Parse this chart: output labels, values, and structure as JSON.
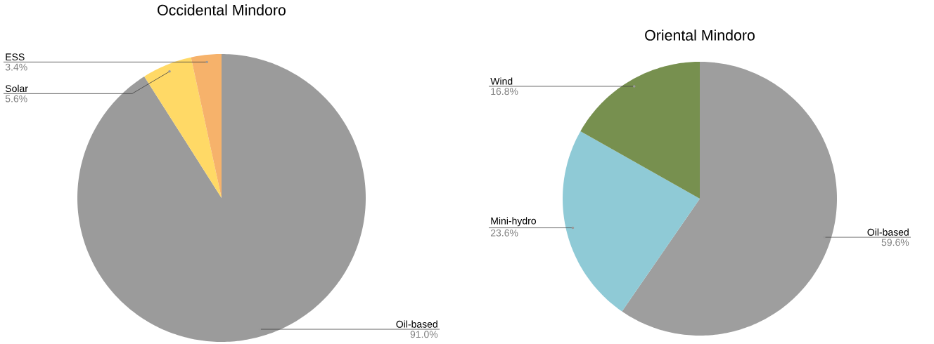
{
  "chart_data": [
    {
      "type": "pie",
      "title": "Occidental Mindoro",
      "categories": [
        "Oil-based",
        "Solar",
        "ESS"
      ],
      "values": [
        91.0,
        5.6,
        3.4
      ],
      "colors": [
        "#9b9b9b",
        "#ffd966",
        "#f6b26b"
      ],
      "value_labels": [
        "91.0%",
        "5.6%",
        "3.4%"
      ]
    },
    {
      "type": "pie",
      "title": "Oriental Mindoro",
      "categories": [
        "Oil-based",
        "Mini-hydro",
        "Wind"
      ],
      "values": [
        59.6,
        23.6,
        16.8
      ],
      "colors": [
        "#9e9e9e",
        "#8fcad6",
        "#77904f"
      ],
      "value_labels": [
        "59.6%",
        "23.6%",
        "16.8%"
      ]
    }
  ]
}
